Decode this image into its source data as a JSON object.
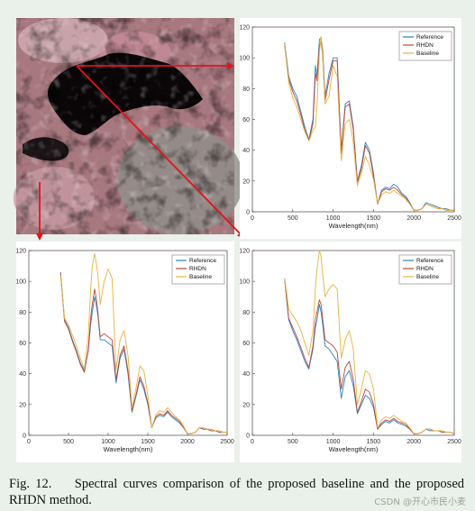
{
  "caption": {
    "label": "Fig. 12.",
    "text": "Spectral curves comparison of the proposed baseline and the proposed RHDN method."
  },
  "watermark": "CSDN @开心市民小麦",
  "colors": {
    "reference": "#2f7fc1",
    "rhdn": "#b8463a",
    "baseline": "#e8b23e",
    "arrow": "#e0151c"
  },
  "chart_data": [
    {
      "type": "line",
      "panel": "top-right",
      "xlabel": "Wavelength(nm)",
      "xlim": [
        0,
        2500
      ],
      "ylim": [
        0,
        120
      ],
      "xticks": [
        0,
        500,
        1000,
        1500,
        2000,
        2500
      ],
      "yticks": [
        0,
        20,
        40,
        60,
        80,
        100,
        120
      ],
      "legend": "top-right",
      "x": [
        400,
        450,
        500,
        550,
        600,
        650,
        700,
        750,
        780,
        800,
        830,
        850,
        870,
        900,
        950,
        1000,
        1050,
        1100,
        1150,
        1200,
        1250,
        1300,
        1350,
        1400,
        1450,
        1500,
        1550,
        1600,
        1650,
        1700,
        1750,
        1800,
        1850,
        1900,
        1950,
        2000,
        2050,
        2100,
        2150,
        2200,
        2250,
        2300,
        2350,
        2400,
        2450,
        2500
      ],
      "series": [
        {
          "name": "Reference",
          "color": "#2f7fc1",
          "values": [
            110,
            88,
            80,
            75,
            65,
            55,
            47,
            60,
            95,
            88,
            112,
            113,
            105,
            75,
            90,
            100,
            100,
            40,
            70,
            72,
            55,
            20,
            30,
            45,
            40,
            25,
            5,
            14,
            16,
            15,
            18,
            16,
            12,
            10,
            6,
            1,
            1,
            2,
            6,
            5,
            4,
            3,
            2,
            2,
            1,
            1
          ]
        },
        {
          "name": "RHDN",
          "color": "#b8463a",
          "values": [
            108,
            86,
            78,
            72,
            63,
            53,
            46,
            57,
            90,
            85,
            108,
            110,
            102,
            72,
            86,
            98,
            98,
            38,
            68,
            70,
            53,
            19,
            28,
            43,
            38,
            23,
            5,
            13,
            15,
            14,
            16,
            14,
            11,
            9,
            5,
            1,
            1,
            2,
            5,
            4,
            3,
            2,
            2,
            1,
            1,
            1
          ]
        },
        {
          "name": "Baseline",
          "color": "#e8b23e",
          "values": [
            109,
            84,
            74,
            68,
            60,
            52,
            46,
            53,
            55,
            68,
            104,
            114,
            100,
            70,
            75,
            95,
            88,
            33,
            57,
            60,
            45,
            17,
            25,
            36,
            30,
            21,
            5,
            11,
            13,
            12,
            14,
            12,
            10,
            8,
            5,
            1,
            1,
            2,
            5,
            4,
            3,
            2,
            2,
            1,
            1,
            1
          ]
        }
      ]
    },
    {
      "type": "line",
      "panel": "bottom-left",
      "xlabel": "Wavelength(nm)",
      "xlim": [
        0,
        2500
      ],
      "ylim": [
        0,
        120
      ],
      "xticks": [
        0,
        500,
        1000,
        1500,
        2000,
        2500
      ],
      "yticks": [
        0,
        20,
        40,
        60,
        80,
        100,
        120
      ],
      "legend": "top-right",
      "x": [
        400,
        450,
        500,
        550,
        600,
        650,
        700,
        750,
        780,
        800,
        830,
        850,
        870,
        900,
        950,
        1000,
        1050,
        1100,
        1150,
        1200,
        1250,
        1300,
        1350,
        1400,
        1450,
        1500,
        1550,
        1600,
        1650,
        1700,
        1750,
        1800,
        1850,
        1900,
        1950,
        2000,
        2050,
        2100,
        2150,
        2200,
        2250,
        2300,
        2350,
        2400,
        2450,
        2500
      ],
      "series": [
        {
          "name": "Reference",
          "color": "#2f7fc1",
          "values": [
            106,
            75,
            70,
            62,
            55,
            47,
            42,
            55,
            72,
            80,
            90,
            85,
            78,
            62,
            62,
            60,
            58,
            34,
            50,
            56,
            40,
            15,
            25,
            36,
            30,
            20,
            5,
            11,
            13,
            12,
            15,
            12,
            10,
            8,
            5,
            1,
            1,
            2,
            5,
            4,
            4,
            3,
            3,
            2,
            2,
            2
          ]
        },
        {
          "name": "RHDN",
          "color": "#b8463a",
          "values": [
            105,
            74,
            69,
            61,
            54,
            46,
            41,
            56,
            76,
            85,
            95,
            89,
            80,
            64,
            66,
            64,
            62,
            36,
            52,
            58,
            42,
            16,
            26,
            38,
            32,
            21,
            5,
            12,
            14,
            13,
            16,
            13,
            11,
            9,
            5,
            1,
            1,
            2,
            5,
            4,
            4,
            3,
            3,
            2,
            2,
            2
          ]
        },
        {
          "name": "Baseline",
          "color": "#e8b23e",
          "values": [
            104,
            76,
            72,
            65,
            58,
            50,
            43,
            65,
            95,
            110,
            118,
            112,
            104,
            85,
            100,
            108,
            102,
            42,
            62,
            68,
            52,
            18,
            30,
            45,
            42,
            26,
            5,
            13,
            16,
            15,
            18,
            15,
            12,
            10,
            6,
            1,
            1,
            2,
            5,
            5,
            4,
            4,
            3,
            3,
            2,
            2
          ]
        }
      ]
    },
    {
      "type": "line",
      "panel": "bottom-right",
      "xlabel": "Wavelength(nm)",
      "xlim": [
        0,
        2500
      ],
      "ylim": [
        0,
        120
      ],
      "xticks": [
        0,
        500,
        1000,
        1500,
        2000,
        2500
      ],
      "yticks": [
        0,
        20,
        40,
        60,
        80,
        100,
        120
      ],
      "legend": "top-right",
      "x": [
        400,
        450,
        500,
        550,
        600,
        650,
        700,
        750,
        780,
        800,
        830,
        850,
        870,
        900,
        950,
        1000,
        1050,
        1100,
        1150,
        1200,
        1250,
        1300,
        1350,
        1400,
        1450,
        1500,
        1550,
        1600,
        1650,
        1700,
        1750,
        1800,
        1850,
        1900,
        1950,
        2000,
        2050,
        2100,
        2150,
        2200,
        2250,
        2300,
        2350,
        2400,
        2450,
        2500
      ],
      "series": [
        {
          "name": "Reference",
          "color": "#2f7fc1",
          "values": [
            102,
            75,
            68,
            62,
            55,
            48,
            43,
            56,
            70,
            75,
            85,
            80,
            72,
            58,
            56,
            52,
            48,
            24,
            38,
            42,
            32,
            14,
            20,
            26,
            24,
            18,
            4,
            7,
            9,
            8,
            10,
            8,
            7,
            6,
            4,
            1,
            1,
            2,
            4,
            3,
            3,
            3,
            2,
            2,
            2,
            1
          ]
        },
        {
          "name": "RHDN",
          "color": "#b8463a",
          "values": [
            101,
            76,
            70,
            64,
            57,
            50,
            44,
            58,
            75,
            80,
            88,
            85,
            76,
            62,
            60,
            58,
            54,
            30,
            44,
            48,
            36,
            15,
            22,
            30,
            28,
            20,
            4,
            8,
            10,
            9,
            11,
            9,
            8,
            7,
            4,
            1,
            1,
            2,
            4,
            4,
            3,
            3,
            2,
            2,
            2,
            1
          ]
        },
        {
          "name": "Baseline",
          "color": "#e8b23e",
          "values": [
            102,
            82,
            78,
            74,
            68,
            60,
            52,
            68,
            95,
            108,
            120,
            116,
            105,
            90,
            95,
            98,
            95,
            50,
            62,
            68,
            56,
            20,
            30,
            42,
            40,
            30,
            5,
            10,
            12,
            11,
            13,
            11,
            9,
            8,
            5,
            1,
            1,
            2,
            4,
            4,
            3,
            3,
            3,
            2,
            2,
            1
          ]
        }
      ]
    }
  ]
}
